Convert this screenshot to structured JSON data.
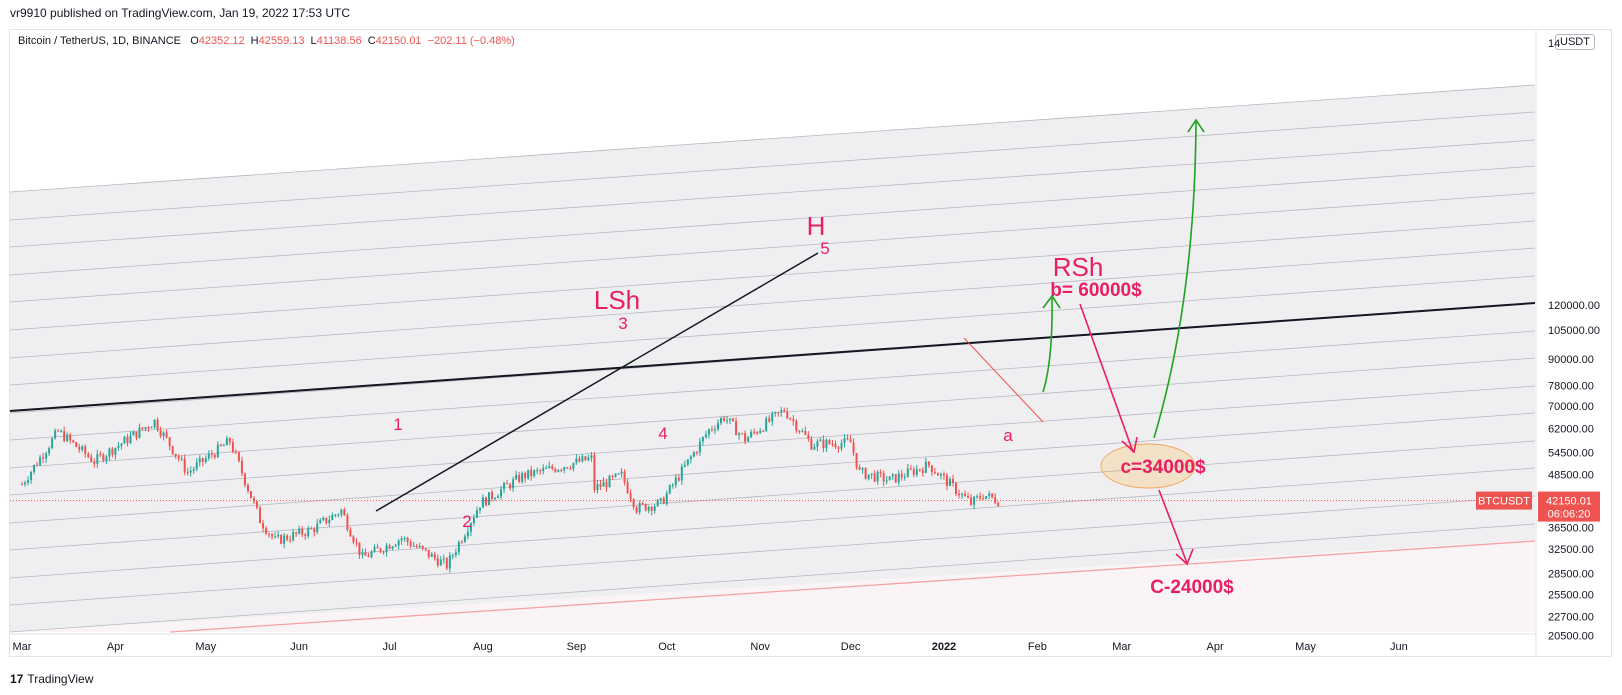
{
  "caption": "vr9910 published on TradingView.com, Jan 19, 2022 17:53 UTC",
  "symbol": {
    "name": "Bitcoin / TetherUS, 1D, BINANCE",
    "open_key": "O",
    "open": "42352.12",
    "high_key": "H",
    "high": "42559.13",
    "low_key": "L",
    "low": "41138.56",
    "close_key": "C",
    "close": "42150.01",
    "change": "−202.11 (−0.48%)"
  },
  "currency_button": "USDT",
  "footer": {
    "logo_mark": "17",
    "logo_text": "TradingView"
  },
  "colors": {
    "up": "#26a69a",
    "down": "#ef5350",
    "annotation": "#e91e63",
    "arrow_green": "#1fa31f",
    "band": "#efeff1"
  },
  "chart_data": {
    "type": "candlestick",
    "title": "",
    "xlabel": "",
    "ylabel": "",
    "price_scale": "log",
    "ylim": [
      18600,
      140000
    ],
    "x_ticks": [
      "Mar",
      "Apr",
      "May",
      "Jun",
      "Jul",
      "Aug",
      "Sep",
      "Oct",
      "Nov",
      "Dec",
      "2022",
      "Feb",
      "Mar",
      "Apr",
      "May",
      "Jun"
    ],
    "y_ticks": [
      20500,
      22700,
      25500,
      28500,
      32500,
      36500,
      48500,
      54500,
      62000,
      70000,
      78000,
      90000,
      105000,
      120000
    ],
    "y_tick_labels": [
      "20500.00",
      "22700.00",
      "25500.00",
      "28500.00",
      "32500.00",
      "36500.00",
      "48500.00",
      "54500.00",
      "62000.00",
      "70000.00",
      "78000.00",
      "90000.00",
      "105000.00",
      "120000.00"
    ],
    "y_top_label": "14",
    "price_label": {
      "symbol": "BTCUSDT",
      "price": "42150.01",
      "countdown": "06:06:20"
    },
    "series": [
      {
        "name": "BTCUSDT",
        "points": [
          [
            "2021-03-01",
            46000
          ],
          [
            "2021-03-13",
            61000
          ],
          [
            "2021-03-25",
            52000
          ],
          [
            "2021-04-14",
            64500
          ],
          [
            "2021-04-25",
            49000
          ],
          [
            "2021-05-09",
            58000
          ],
          [
            "2021-05-19",
            38000
          ],
          [
            "2021-05-24",
            34000
          ],
          [
            "2021-06-05",
            36000
          ],
          [
            "2021-06-15",
            40000
          ],
          [
            "2021-06-22",
            31000
          ],
          [
            "2021-07-05",
            34500
          ],
          [
            "2021-07-20",
            29800
          ],
          [
            "2021-07-31",
            41500
          ],
          [
            "2021-08-14",
            48000
          ],
          [
            "2021-09-06",
            52800
          ],
          [
            "2021-09-07",
            45000
          ],
          [
            "2021-09-16",
            48200
          ],
          [
            "2021-09-21",
            40500
          ],
          [
            "2021-09-29",
            41500
          ],
          [
            "2021-10-15",
            61500
          ],
          [
            "2021-10-20",
            66000
          ],
          [
            "2021-10-27",
            58500
          ],
          [
            "2021-11-09",
            68500
          ],
          [
            "2021-11-18",
            57000
          ],
          [
            "2021-12-01",
            57500
          ],
          [
            "2021-12-04",
            49000
          ],
          [
            "2021-12-14",
            47000
          ],
          [
            "2021-12-27",
            51000
          ],
          [
            "2022-01-10",
            41500
          ],
          [
            "2022-01-14",
            43500
          ],
          [
            "2022-01-19",
            42150
          ]
        ]
      }
    ],
    "annotations": {
      "wave_labels": [
        "1",
        "2",
        "3",
        "4",
        "5"
      ],
      "pattern_labels": [
        "LSh",
        "H",
        "RSh"
      ],
      "correction_labels": [
        "a",
        "b= 60000$",
        "c=34000$",
        "C-24000$"
      ]
    }
  }
}
